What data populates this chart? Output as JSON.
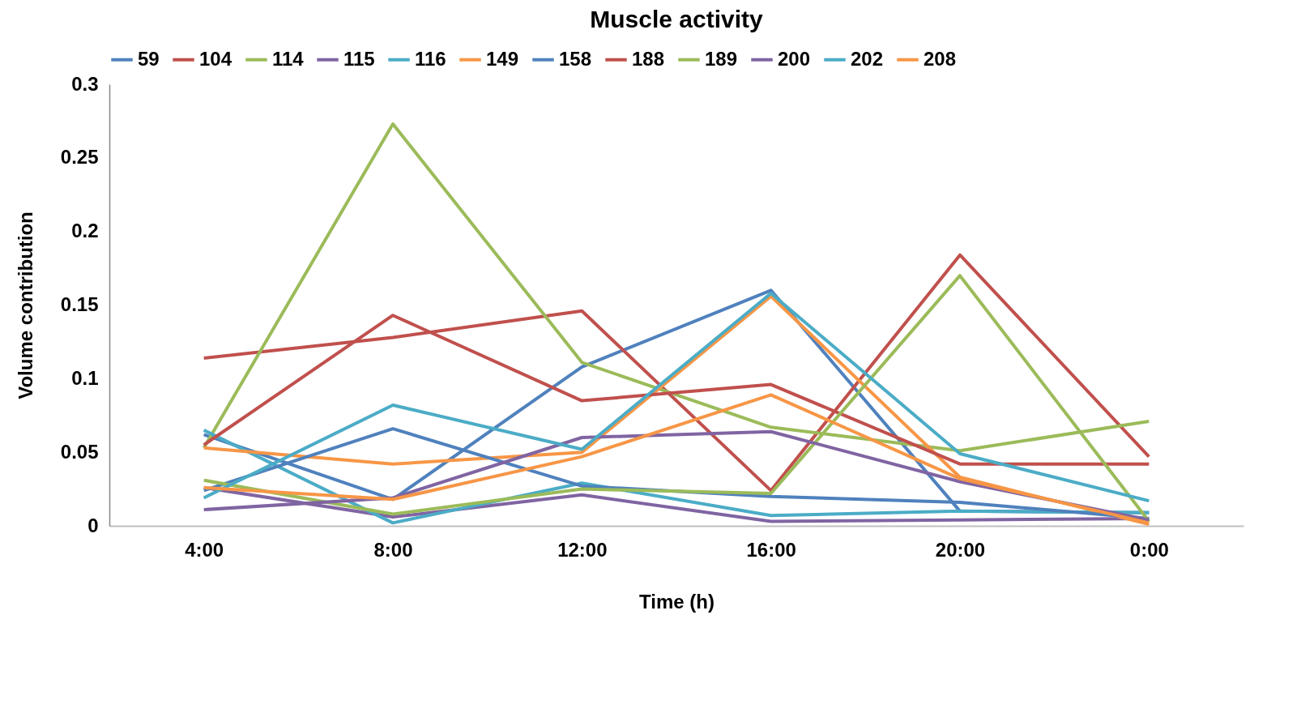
{
  "chart_data": {
    "type": "line",
    "title": "Muscle activity",
    "xlabel": "Time (h)",
    "ylabel": "Volume contribution",
    "categories": [
      "4:00",
      "8:00",
      "12:00",
      "16:00",
      "20:00",
      "0:00"
    ],
    "series": [
      {
        "name": "59",
        "color": "#4f81bd",
        "values": [
          0.062,
          0.018,
          0.108,
          0.16,
          0.01,
          0.009
        ]
      },
      {
        "name": "104",
        "color": "#c0504d",
        "values": [
          0.114,
          0.128,
          0.146,
          0.024,
          0.184,
          0.047
        ]
      },
      {
        "name": "114",
        "color": "#9bbb59",
        "values": [
          0.053,
          0.273,
          0.111,
          0.067,
          0.051,
          0.071
        ]
      },
      {
        "name": "115",
        "color": "#8064a2",
        "values": [
          0.026,
          0.006,
          0.021,
          0.003,
          0.004,
          0.005
        ]
      },
      {
        "name": "116",
        "color": "#4bacc6",
        "values": [
          0.065,
          0.002,
          0.029,
          0.007,
          0.01,
          0.009
        ]
      },
      {
        "name": "149",
        "color": "#f79646",
        "values": [
          0.053,
          0.042,
          0.05,
          0.156,
          0.033,
          0.001
        ]
      },
      {
        "name": "158",
        "color": "#4f81bd",
        "values": [
          0.024,
          0.066,
          0.027,
          0.02,
          0.016,
          0.005
        ]
      },
      {
        "name": "188",
        "color": "#c0504d",
        "values": [
          0.055,
          0.143,
          0.085,
          0.096,
          0.042,
          0.042
        ]
      },
      {
        "name": "189",
        "color": "#9bbb59",
        "values": [
          0.031,
          0.008,
          0.025,
          0.022,
          0.17,
          0.003
        ]
      },
      {
        "name": "200",
        "color": "#8064a2",
        "values": [
          0.011,
          0.019,
          0.06,
          0.064,
          0.03,
          0.004
        ]
      },
      {
        "name": "202",
        "color": "#4bacc6",
        "values": [
          0.019,
          0.082,
          0.052,
          0.158,
          0.049,
          0.017
        ]
      },
      {
        "name": "208",
        "color": "#f79646",
        "values": [
          0.026,
          0.018,
          0.047,
          0.089,
          0.032,
          0.002
        ]
      }
    ],
    "ylim": [
      0,
      0.3
    ],
    "yticks": [
      0,
      0.05,
      0.1,
      0.15,
      0.2,
      0.25,
      0.3
    ],
    "grid": false,
    "legend": "top",
    "marker": "none",
    "line_style": "solid"
  }
}
